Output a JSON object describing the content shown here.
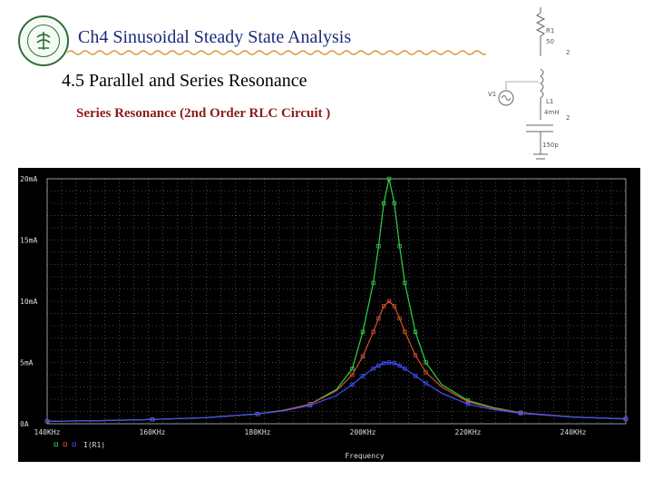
{
  "header": {
    "title": "Ch4  Sinusoidal Steady State Analysis",
    "section": "4.5 Parallel and Series Resonance",
    "subtitle": "Series Resonance  (2nd Order RLC Circuit )"
  },
  "circuit": {
    "r_name": "R1",
    "r_value": "50",
    "v_name": "V1",
    "l_name": "L1",
    "l_value": "4mH",
    "c_value": "150p",
    "node_label": "2",
    "icon": "rlc-series-circuit-schematic-icon"
  },
  "colors": {
    "plot_bg": "#000000",
    "grid": "#8a8a8a",
    "series_green": "#2fd04a",
    "series_red": "#d05030",
    "series_blue": "#4050ff",
    "title_blue": "#1a2a7a",
    "subtitle_red": "#8b1a1a"
  },
  "chart_data": {
    "type": "line",
    "title": "",
    "xlabel": "Frequency",
    "ylabel": "",
    "xlim": [
      140,
      250
    ],
    "ylim": [
      0,
      20
    ],
    "x_unit": "KHz",
    "y_unit": "mA",
    "x_ticks": [
      "140KHz",
      "160KHz",
      "180KHz",
      "200KHz",
      "220KHz",
      "240KHz"
    ],
    "y_ticks": [
      "0A",
      "5mA",
      "10mA",
      "15mA",
      "20mA"
    ],
    "legend": "bottom-left",
    "legend_label": "I(R1)",
    "grid": true,
    "resonance_freq_khz": 205,
    "series": [
      {
        "color": "#2fd04a",
        "x": [
          140,
          150,
          160,
          170,
          180,
          185,
          190,
          195,
          198,
          200,
          202,
          203,
          204,
          205,
          206,
          207,
          208,
          210,
          212,
          215,
          220,
          225,
          230,
          240,
          250
        ],
        "values": [
          0.2,
          0.25,
          0.35,
          0.5,
          0.8,
          1.1,
          1.6,
          2.8,
          4.5,
          7.5,
          11.5,
          14.5,
          18.0,
          20.0,
          18.0,
          14.5,
          11.5,
          7.5,
          5.0,
          3.2,
          1.9,
          1.3,
          0.9,
          0.55,
          0.4
        ]
      },
      {
        "color": "#d05030",
        "x": [
          140,
          150,
          160,
          170,
          180,
          185,
          190,
          195,
          198,
          200,
          202,
          203,
          204,
          205,
          206,
          207,
          208,
          210,
          212,
          215,
          220,
          225,
          230,
          240,
          250
        ],
        "values": [
          0.2,
          0.25,
          0.35,
          0.5,
          0.8,
          1.1,
          1.6,
          2.7,
          4.0,
          5.5,
          7.5,
          8.6,
          9.6,
          10.0,
          9.6,
          8.6,
          7.5,
          5.6,
          4.2,
          3.0,
          1.8,
          1.25,
          0.9,
          0.55,
          0.4
        ]
      },
      {
        "color": "#4050ff",
        "x": [
          140,
          150,
          160,
          170,
          180,
          185,
          190,
          195,
          198,
          200,
          202,
          203,
          204,
          205,
          206,
          207,
          208,
          210,
          212,
          215,
          220,
          225,
          230,
          240,
          250
        ],
        "values": [
          0.2,
          0.25,
          0.35,
          0.5,
          0.8,
          1.05,
          1.5,
          2.3,
          3.2,
          3.9,
          4.5,
          4.75,
          4.95,
          5.0,
          4.95,
          4.75,
          4.5,
          3.9,
          3.3,
          2.5,
          1.6,
          1.15,
          0.85,
          0.55,
          0.4
        ]
      }
    ]
  }
}
